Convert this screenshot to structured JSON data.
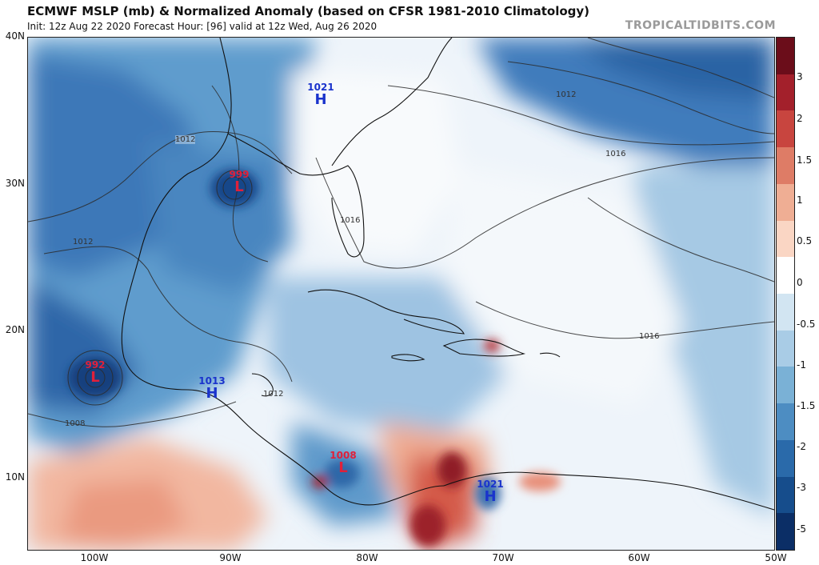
{
  "header": {
    "title": "ECMWF MSLP (mb) & Normalized Anomaly (based on CFSR 1981-2010 Climatology)",
    "subtitle": "Init: 12z Aug 22 2020   Forecast Hour: [96]   valid at 12z Wed, Aug 26 2020",
    "brand": "TROPICALTIDBITS.COM"
  },
  "axes": {
    "lat_labels": [
      "40N",
      "30N",
      "20N",
      "10N"
    ],
    "lon_labels": [
      "100W",
      "90W",
      "80W",
      "70W",
      "60W",
      "50W"
    ]
  },
  "colorbar": {
    "labels": [
      "3",
      "2",
      "1.5",
      "1",
      "0.5",
      "0",
      "-0.5",
      "-1",
      "-1.5",
      "-2",
      "-3",
      "-5"
    ],
    "colors": [
      "#6b0d1a",
      "#a3202b",
      "#c8453f",
      "#de7c66",
      "#efae94",
      "#fad6c4",
      "#ffffff",
      "#d2e5f2",
      "#a9cce6",
      "#7ab1d6",
      "#4d8dc2",
      "#2a6aaa",
      "#164d8c",
      "#0b2e66"
    ]
  },
  "pressure_centers": [
    {
      "type": "H",
      "value": "1021",
      "color": "#1a33cc"
    },
    {
      "type": "L",
      "value": "999",
      "color": "#e0203a"
    },
    {
      "type": "L",
      "value": "992",
      "color": "#e0203a"
    },
    {
      "type": "H",
      "value": "1013",
      "color": "#1a33cc"
    },
    {
      "type": "L",
      "value": "1008",
      "color": "#e0203a"
    },
    {
      "type": "H",
      "value": "1021",
      "color": "#1a33cc"
    }
  ],
  "contour_labels": [
    "1012",
    "1016",
    "1012",
    "1016",
    "1012",
    "1008",
    "1012",
    "1016"
  ]
}
